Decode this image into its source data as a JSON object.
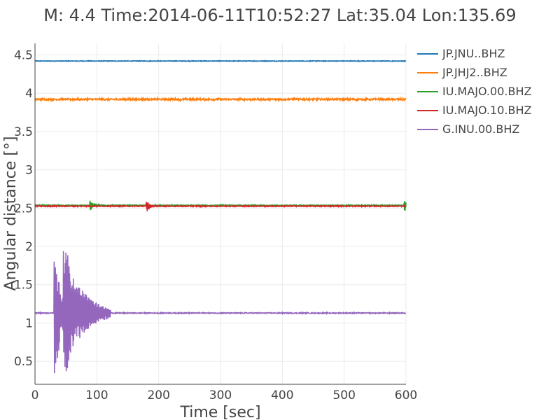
{
  "chart_data": {
    "type": "line",
    "title": "M: 4.4 Time:2014-06-11T10:52:27 Lat:35.04 Lon:135.69",
    "xlabel": "Time [sec]",
    "ylabel": "Angular distance [°]",
    "xlim": [
      0,
      600
    ],
    "ylim": [
      0.2,
      4.65
    ],
    "xticks": [
      0,
      100,
      200,
      300,
      400,
      500,
      600
    ],
    "yticks": [
      0.5,
      1,
      1.5,
      2,
      2.5,
      3,
      3.5,
      4,
      4.5
    ],
    "grid": true,
    "legend_position": "top-right",
    "series": [
      {
        "name": "JP.JNU..BHZ",
        "color": "#1f77b4",
        "baseline": 4.42,
        "noise": 0.004,
        "events": []
      },
      {
        "name": "JP.JHJ2..BHZ",
        "color": "#ff7f0e",
        "baseline": 3.92,
        "noise": 0.012,
        "events": []
      },
      {
        "name": "IU.MAJO.00.BHZ",
        "color": "#2ca02c",
        "baseline": 2.535,
        "noise": 0.006,
        "events": [
          {
            "t": 90,
            "amp": 0.07,
            "width": 6
          },
          {
            "t": 598,
            "amp": 0.08,
            "width": 5
          }
        ]
      },
      {
        "name": "IU.MAJO.10.BHZ",
        "color": "#d62728",
        "baseline": 2.525,
        "noise": 0.006,
        "events": [
          {
            "t": 181,
            "amp": 0.07,
            "width": 6
          }
        ]
      },
      {
        "name": "G.INU.00.BHZ",
        "color": "#9467bd",
        "baseline": 1.13,
        "noise": 0.006,
        "events": [
          {
            "t": 32,
            "amp": 0.95,
            "width": 10
          },
          {
            "t": 47,
            "amp": 0.8,
            "width": 30
          }
        ]
      }
    ]
  }
}
